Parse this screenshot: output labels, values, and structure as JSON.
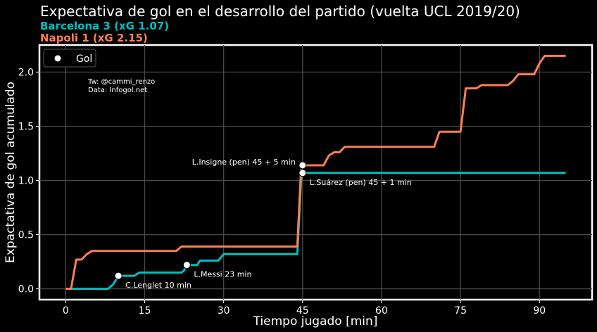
{
  "title": "Expectativa de gol en el desarrollo del partido (vuelta UCL 2019/20)",
  "subtitle_home": "Barcelona 3 (xG 1.07)",
  "subtitle_away": "Napoli 1 (xG 2.15)",
  "credits": [
    "Tw: @cammi_renzo",
    "Data: Infogol.net"
  ],
  "colors": {
    "home": "#00bfbf",
    "away": "#ff7f50",
    "background": "#000000",
    "goal_marker": "#ffffff"
  },
  "chart_data": {
    "type": "line",
    "xlabel": "Tiempo jugado [min]",
    "ylabel": "Expactativa de gol acumulado",
    "xlim": [
      -5,
      100
    ],
    "ylim": [
      -0.1,
      2.25
    ],
    "xticks": [
      0,
      15,
      30,
      45,
      60,
      75,
      90
    ],
    "yticks": [
      0.0,
      0.5,
      1.0,
      1.5,
      2.0
    ],
    "grid": true,
    "legend": {
      "placement": "top-left",
      "entries": [
        "Gol"
      ]
    },
    "series": [
      {
        "name": "Barcelona",
        "color": "#00bfbf",
        "points": [
          [
            0,
            0
          ],
          [
            8,
            0
          ],
          [
            9,
            0.04
          ],
          [
            9.5,
            0.08
          ],
          [
            10,
            0.12
          ],
          [
            13,
            0.12
          ],
          [
            14,
            0.15
          ],
          [
            22,
            0.15
          ],
          [
            22.5,
            0.17
          ],
          [
            23,
            0.22
          ],
          [
            25,
            0.22
          ],
          [
            25.5,
            0.26
          ],
          [
            29,
            0.26
          ],
          [
            30,
            0.32
          ],
          [
            44,
            0.32
          ],
          [
            44.4,
            0.7
          ],
          [
            44.7,
            1.0
          ],
          [
            45,
            1.07
          ],
          [
            95,
            1.07
          ]
        ]
      },
      {
        "name": "Napoli",
        "color": "#ff7f50",
        "points": [
          [
            0,
            0
          ],
          [
            1,
            0
          ],
          [
            2,
            0.27
          ],
          [
            3,
            0.27
          ],
          [
            4,
            0.32
          ],
          [
            5,
            0.35
          ],
          [
            21,
            0.35
          ],
          [
            22,
            0.39
          ],
          [
            44,
            0.39
          ],
          [
            44.3,
            0.7
          ],
          [
            44.7,
            1.1
          ],
          [
            45,
            1.14
          ],
          [
            49,
            1.14
          ],
          [
            50,
            1.23
          ],
          [
            51,
            1.26
          ],
          [
            52,
            1.26
          ],
          [
            53,
            1.31
          ],
          [
            70,
            1.31
          ],
          [
            71,
            1.45
          ],
          [
            75,
            1.45
          ],
          [
            76,
            1.85
          ],
          [
            78,
            1.85
          ],
          [
            79,
            1.88
          ],
          [
            84,
            1.88
          ],
          [
            85,
            1.92
          ],
          [
            86,
            1.98
          ],
          [
            89,
            1.98
          ],
          [
            90,
            2.08
          ],
          [
            91,
            2.15
          ],
          [
            95,
            2.15
          ]
        ]
      }
    ],
    "goals": [
      {
        "label": "C.Lenglet 10 min",
        "x": 10,
        "y": 0.12,
        "align": "right-below"
      },
      {
        "label": "L.Messi 23 min",
        "x": 23,
        "y": 0.22,
        "align": "right-below"
      },
      {
        "label": "L.Suárez (pen) 45 + 1 min",
        "x": 45,
        "y": 1.07,
        "align": "right-below"
      },
      {
        "label": "L.Insigne (pen) 45 + 5 min",
        "x": 45,
        "y": 1.14,
        "align": "left"
      }
    ]
  }
}
